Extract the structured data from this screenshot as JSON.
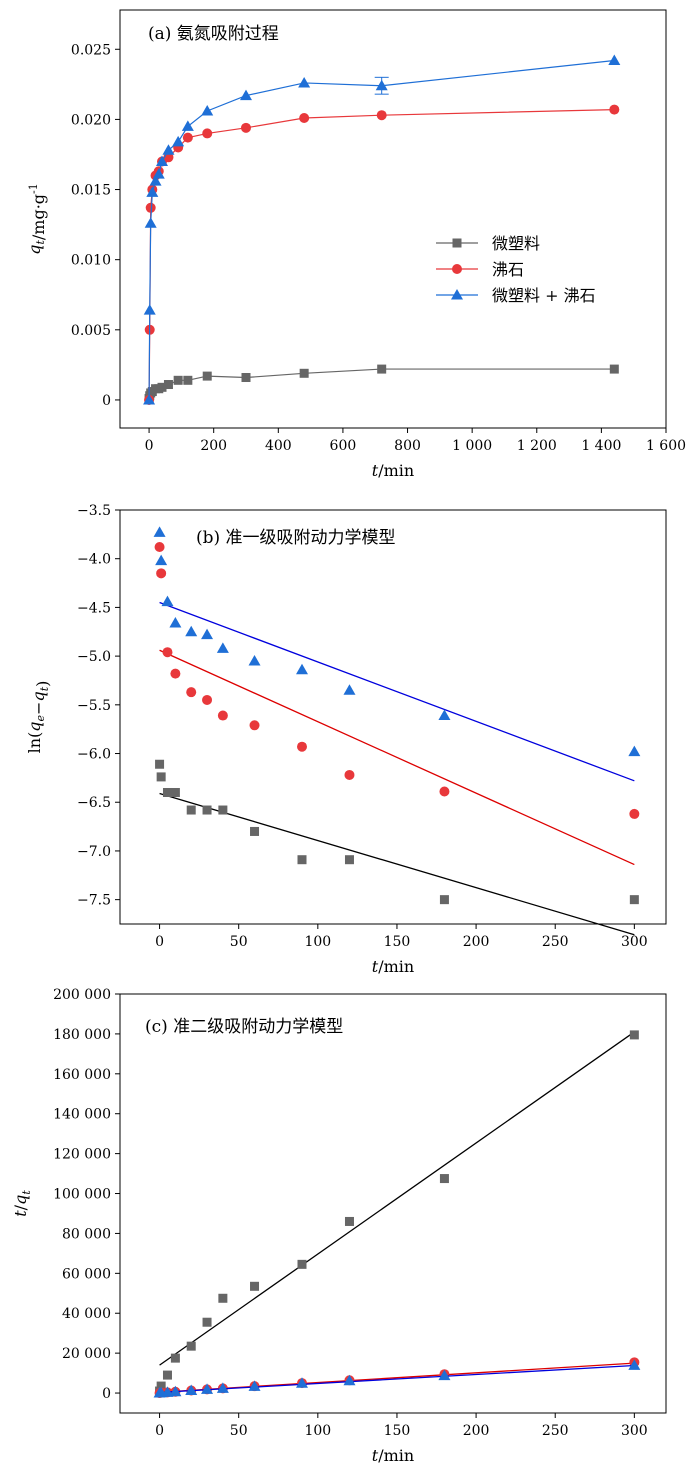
{
  "colors": {
    "micro": "#666666",
    "zeolite": "#e8383b",
    "mixed": "#1f6fd6",
    "fit_mixed": "#0000dd",
    "fit_zeolite": "#dd0000",
    "fit_micro": "#000000"
  },
  "chart_data": [
    {
      "type": "line",
      "title": "(a) 氨氮吸附过程",
      "xlabel": "t/min",
      "ylabel": "q_t/mg·g⁻¹",
      "xlim": [
        -90,
        1600
      ],
      "ylim": [
        -0.002,
        0.0278
      ],
      "xticks": [
        0,
        200,
        400,
        600,
        800,
        1000,
        1200,
        1400,
        1600
      ],
      "xtick_labels": [
        "0",
        "200",
        "400",
        "600",
        "800",
        "1 000",
        "1 200",
        "1 400",
        "1 600"
      ],
      "yticks": [
        0,
        0.005,
        0.01,
        0.015,
        0.02,
        0.025
      ],
      "ytick_labels": [
        "0",
        "0.005",
        "0.010",
        "0.015",
        "0.020",
        "0.025"
      ],
      "legend": "center-right",
      "legend_labels": [
        "微塑料",
        "沸石",
        "微塑料 + 沸石"
      ],
      "series": [
        {
          "name": "微塑料",
          "marker": "square",
          "x": [
            0,
            2,
            5,
            10,
            20,
            30,
            40,
            60,
            90,
            120,
            180,
            300,
            480,
            720,
            1440
          ],
          "y": [
            0.0001,
            0.0003,
            0.0005,
            0.0006,
            0.0008,
            0.0008,
            0.0009,
            0.0011,
            0.0014,
            0.0014,
            0.0017,
            0.0016,
            0.0019,
            0.0022,
            0.0022
          ]
        },
        {
          "name": "沸石",
          "marker": "circle",
          "x": [
            0,
            2,
            5,
            10,
            20,
            30,
            40,
            60,
            90,
            120,
            180,
            300,
            480,
            720,
            1440
          ],
          "y": [
            0,
            0.005,
            0.0137,
            0.015,
            0.016,
            0.0163,
            0.017,
            0.0173,
            0.018,
            0.0187,
            0.019,
            0.0194,
            0.0201,
            0.0203,
            0.0207
          ]
        },
        {
          "name": "微塑料 + 沸石",
          "marker": "triangle",
          "x": [
            0,
            2,
            5,
            10,
            20,
            30,
            40,
            60,
            90,
            120,
            180,
            300,
            480,
            720,
            1440
          ],
          "y": [
            0,
            0.0064,
            0.0126,
            0.0148,
            0.0156,
            0.0161,
            0.017,
            0.0178,
            0.0184,
            0.0195,
            0.0206,
            0.0217,
            0.0226,
            0.0224,
            0.0242
          ],
          "error_bar": {
            "x": 720,
            "minus": 0.0006,
            "plus": 0.0006
          }
        }
      ]
    },
    {
      "type": "scatter",
      "title": "(b) 准一级吸附动力学模型",
      "xlabel": "t/min",
      "ylabel": "ln(q_e−q_t)",
      "xlim": [
        -25,
        320
      ],
      "ylim": [
        -7.75,
        -3.5
      ],
      "xticks": [
        0,
        50,
        100,
        150,
        200,
        250,
        300
      ],
      "xtick_labels": [
        "0",
        "50",
        "100",
        "150",
        "200",
        "250",
        "300"
      ],
      "yticks": [
        -3.5,
        -4.0,
        -4.5,
        -5.0,
        -5.5,
        -6.0,
        -6.5,
        -7.0,
        -7.5
      ],
      "ytick_labels": [
        "−3.5",
        "−4.0",
        "−4.5",
        "−5.0",
        "−5.5",
        "−6.0",
        "−6.5",
        "−7.0",
        "−7.5"
      ],
      "series": [
        {
          "marker": "triangle",
          "color_key": "mixed",
          "x": [
            0,
            1,
            5,
            10,
            20,
            30,
            40,
            60,
            90,
            120,
            180,
            300
          ],
          "y": [
            -3.73,
            -4.02,
            -4.44,
            -4.66,
            -4.75,
            -4.78,
            -4.92,
            -5.05,
            -5.14,
            -5.35,
            -5.61,
            -5.98
          ],
          "fit": {
            "x": [
              0,
              300
            ],
            "y": [
              -4.45,
              -6.28
            ]
          }
        },
        {
          "marker": "circle",
          "color_key": "zeolite",
          "x": [
            0,
            1,
            5,
            10,
            20,
            30,
            40,
            60,
            90,
            120,
            180,
            300
          ],
          "y": [
            -3.88,
            -4.15,
            -4.96,
            -5.18,
            -5.37,
            -5.45,
            -5.61,
            -5.71,
            -5.93,
            -6.22,
            -6.39,
            -6.62
          ],
          "fit": {
            "x": [
              0,
              300
            ],
            "y": [
              -4.94,
              -7.14
            ]
          }
        },
        {
          "marker": "square",
          "color_key": "micro",
          "x": [
            0,
            1,
            5,
            10,
            20,
            30,
            40,
            60,
            90,
            120,
            180,
            300
          ],
          "y": [
            -6.11,
            -6.24,
            -6.4,
            -6.4,
            -6.58,
            -6.58,
            -6.58,
            -6.8,
            -7.09,
            -7.09,
            -7.5,
            -7.5
          ],
          "fit": {
            "x": [
              0,
              300
            ],
            "y": [
              -6.41,
              -7.86
            ]
          }
        }
      ]
    },
    {
      "type": "scatter",
      "title": "(c) 准二级吸附动力学模型",
      "xlabel": "t/min",
      "ylabel": "t/q_t",
      "xlim": [
        -25,
        320
      ],
      "ylim": [
        -10000,
        200000
      ],
      "xticks": [
        0,
        50,
        100,
        150,
        200,
        250,
        300
      ],
      "xtick_labels": [
        "0",
        "50",
        "100",
        "150",
        "200",
        "250",
        "300"
      ],
      "yticks": [
        0,
        20000,
        40000,
        60000,
        80000,
        100000,
        120000,
        140000,
        160000,
        180000,
        200000
      ],
      "ytick_labels": [
        "0",
        "20 000",
        "40 000",
        "60 000",
        "80 000",
        "100 000",
        "120 000",
        "140 000",
        "160 000",
        "180 000",
        "200 000"
      ],
      "series": [
        {
          "marker": "square",
          "color_key": "micro",
          "x": [
            0,
            1,
            5,
            10,
            20,
            30,
            40,
            60,
            90,
            120,
            180,
            300
          ],
          "y": [
            1000,
            3500,
            9000,
            17500,
            23500,
            35500,
            47500,
            53500,
            64500,
            86000,
            107500,
            179500
          ],
          "fit": {
            "x": [
              0,
              300
            ],
            "y": [
              14000,
              181000
            ]
          }
        },
        {
          "marker": "circle",
          "color_key": "zeolite",
          "x": [
            0,
            1,
            5,
            10,
            20,
            30,
            40,
            60,
            90,
            120,
            180,
            300
          ],
          "y": [
            0,
            200,
            350,
            650,
            1250,
            1850,
            2350,
            3450,
            5000,
            6400,
            9450,
            15400
          ],
          "fit": {
            "x": [
              0,
              300
            ],
            "y": [
              400,
              15000
            ]
          }
        },
        {
          "marker": "triangle",
          "color_key": "mixed",
          "x": [
            0,
            1,
            5,
            10,
            20,
            30,
            40,
            60,
            90,
            120,
            180,
            300
          ],
          "y": [
            0,
            150,
            350,
            650,
            1250,
            1850,
            2350,
            3350,
            4900,
            6150,
            8750,
            13900
          ],
          "fit": {
            "x": [
              0,
              300
            ],
            "y": [
              300,
              13800
            ]
          }
        }
      ]
    }
  ]
}
